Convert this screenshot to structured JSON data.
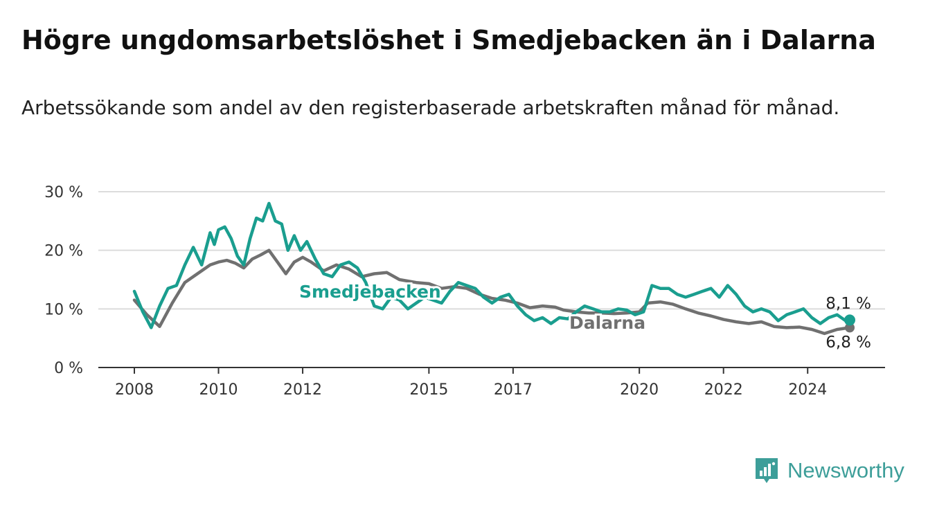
{
  "title": "Högre ungdomsarbetslöshet i Smedjebacken än i Dalarna",
  "subtitle": "Arbetssökande som andel av den registerbaserade arbetskraften månad för månad.",
  "brand": {
    "name": "Newsworthy",
    "icon": "newsworthy-logo-icon",
    "color": "#3d9e99"
  },
  "chart_data": {
    "type": "line",
    "ylim": [
      0,
      30
    ],
    "yticks": [
      "0 %",
      "10 %",
      "20 %",
      "30 %"
    ],
    "ytick_values": [
      0,
      10,
      20,
      30
    ],
    "xlim": [
      2008,
      2025
    ],
    "xticks": [
      "2008",
      "2010",
      "2012",
      "2015",
      "2017",
      "2020",
      "2022",
      "2024"
    ],
    "xtick_values": [
      2008,
      2010,
      2012,
      2015,
      2017,
      2020,
      2022,
      2024
    ],
    "grid": true,
    "series": [
      {
        "name": "Dalarna",
        "color": "#707070",
        "end_label": "6,8 %",
        "x": [
          2008.0,
          2008.3,
          2008.6,
          2008.9,
          2009.2,
          2009.5,
          2009.8,
          2010.0,
          2010.2,
          2010.4,
          2010.6,
          2010.8,
          2011.0,
          2011.2,
          2011.4,
          2011.6,
          2011.8,
          2012.0,
          2012.2,
          2012.5,
          2012.8,
          2013.1,
          2013.4,
          2013.7,
          2014.0,
          2014.3,
          2014.7,
          2015.0,
          2015.3,
          2015.6,
          2015.9,
          2016.2,
          2016.5,
          2016.8,
          2017.1,
          2017.4,
          2017.7,
          2018.0,
          2018.2,
          2018.5,
          2018.8,
          2019.1,
          2019.4,
          2019.7,
          2020.0,
          2020.2,
          2020.5,
          2020.8,
          2021.1,
          2021.4,
          2021.7,
          2022.0,
          2022.3,
          2022.6,
          2022.9,
          2023.2,
          2023.5,
          2023.8,
          2024.1,
          2024.4,
          2024.7,
          2025.0
        ],
        "y": [
          11.5,
          9.0,
          7.0,
          11.0,
          14.5,
          16.0,
          17.5,
          18.0,
          18.3,
          17.8,
          17.0,
          18.5,
          19.2,
          20.0,
          18.0,
          16.0,
          18.0,
          18.8,
          18.0,
          16.5,
          17.5,
          16.8,
          15.5,
          16.0,
          16.2,
          15.0,
          14.5,
          14.3,
          13.5,
          13.8,
          13.5,
          12.5,
          11.8,
          11.5,
          11.0,
          10.2,
          10.5,
          10.3,
          9.8,
          9.5,
          9.3,
          9.3,
          9.2,
          9.3,
          9.5,
          11.0,
          11.2,
          10.8,
          10.0,
          9.3,
          8.8,
          8.2,
          7.8,
          7.5,
          7.8,
          7.0,
          6.8,
          6.9,
          6.5,
          5.8,
          6.5,
          6.8
        ]
      },
      {
        "name": "Smedjebacken",
        "color": "#1a9e8f",
        "end_label": "8,1 %",
        "x": [
          2008.0,
          2008.2,
          2008.4,
          2008.6,
          2008.8,
          2009.0,
          2009.2,
          2009.4,
          2009.6,
          2009.8,
          2009.9,
          2010.0,
          2010.15,
          2010.3,
          2010.45,
          2010.6,
          2010.75,
          2010.9,
          2011.05,
          2011.2,
          2011.35,
          2011.5,
          2011.65,
          2011.8,
          2011.95,
          2012.1,
          2012.3,
          2012.5,
          2012.7,
          2012.9,
          2013.1,
          2013.3,
          2013.5,
          2013.7,
          2013.9,
          2014.1,
          2014.3,
          2014.5,
          2014.7,
          2014.9,
          2015.1,
          2015.3,
          2015.5,
          2015.7,
          2015.9,
          2016.1,
          2016.3,
          2016.5,
          2016.7,
          2016.9,
          2017.1,
          2017.3,
          2017.5,
          2017.7,
          2017.9,
          2018.1,
          2018.3,
          2018.5,
          2018.7,
          2018.9,
          2019.1,
          2019.3,
          2019.5,
          2019.7,
          2019.9,
          2020.1,
          2020.3,
          2020.5,
          2020.7,
          2020.9,
          2021.1,
          2021.3,
          2021.5,
          2021.7,
          2021.9,
          2022.1,
          2022.3,
          2022.5,
          2022.7,
          2022.9,
          2023.1,
          2023.3,
          2023.5,
          2023.7,
          2023.9,
          2024.1,
          2024.3,
          2024.5,
          2024.7,
          2024.9,
          2025.0
        ],
        "y": [
          13.0,
          9.5,
          6.8,
          10.5,
          13.5,
          14.0,
          17.5,
          20.5,
          17.5,
          23.0,
          21.0,
          23.5,
          24.0,
          22.0,
          19.0,
          17.5,
          22.0,
          25.5,
          25.0,
          28.0,
          25.0,
          24.5,
          20.0,
          22.5,
          20.0,
          21.5,
          18.5,
          16.0,
          15.5,
          17.5,
          18.0,
          17.0,
          14.5,
          10.5,
          10.0,
          12.0,
          11.5,
          10.0,
          11.0,
          12.0,
          11.5,
          11.0,
          13.0,
          14.5,
          14.0,
          13.5,
          12.0,
          11.0,
          12.0,
          12.5,
          10.5,
          9.0,
          8.0,
          8.5,
          7.5,
          8.5,
          8.3,
          9.5,
          10.5,
          10.0,
          9.5,
          9.5,
          10.0,
          9.8,
          9.0,
          9.5,
          14.0,
          13.5,
          13.5,
          12.5,
          12.0,
          12.5,
          13.0,
          13.5,
          12.0,
          14.0,
          12.5,
          10.5,
          9.5,
          10.0,
          9.5,
          8.0,
          9.0,
          9.5,
          10.0,
          8.5,
          7.5,
          8.5,
          9.0,
          8.0,
          8.1
        ]
      }
    ]
  }
}
